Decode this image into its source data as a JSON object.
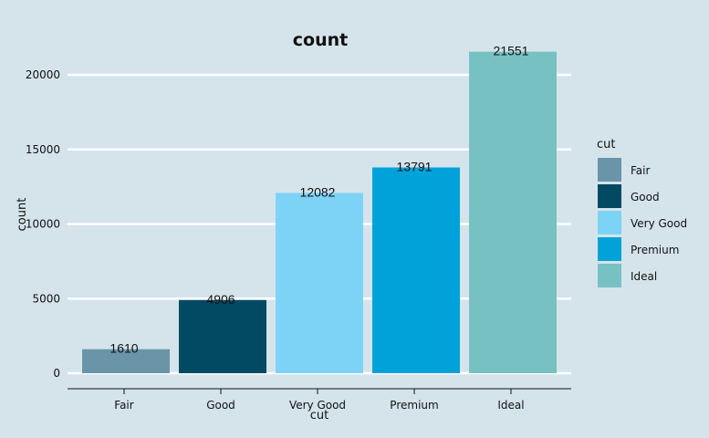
{
  "chart_data": {
    "type": "bar",
    "title": "count",
    "xlabel": "cut",
    "ylabel": "count",
    "categories": [
      "Fair",
      "Good",
      "Very Good",
      "Premium",
      "Ideal"
    ],
    "values": [
      1610,
      4906,
      12082,
      13791,
      21551
    ],
    "data_labels": [
      "1610",
      "4906",
      "12082",
      "13791",
      "21551"
    ],
    "ylim": [
      0,
      22000
    ],
    "yticks": [
      0,
      5000,
      10000,
      15000,
      20000
    ],
    "ytick_labels": [
      "0",
      "5000",
      "10000",
      "15000",
      "20000"
    ],
    "grid": "horizontal",
    "legend": {
      "title": "cut",
      "placement": "right",
      "entries": [
        "Fair",
        "Good",
        "Very Good",
        "Premium",
        "Ideal"
      ]
    },
    "colors": [
      "#6a95a9",
      "#024a63",
      "#7dd3f5",
      "#00a2da",
      "#78c1c2"
    ],
    "background": "#d5e4eb",
    "gridline_color": "#ffffff"
  }
}
